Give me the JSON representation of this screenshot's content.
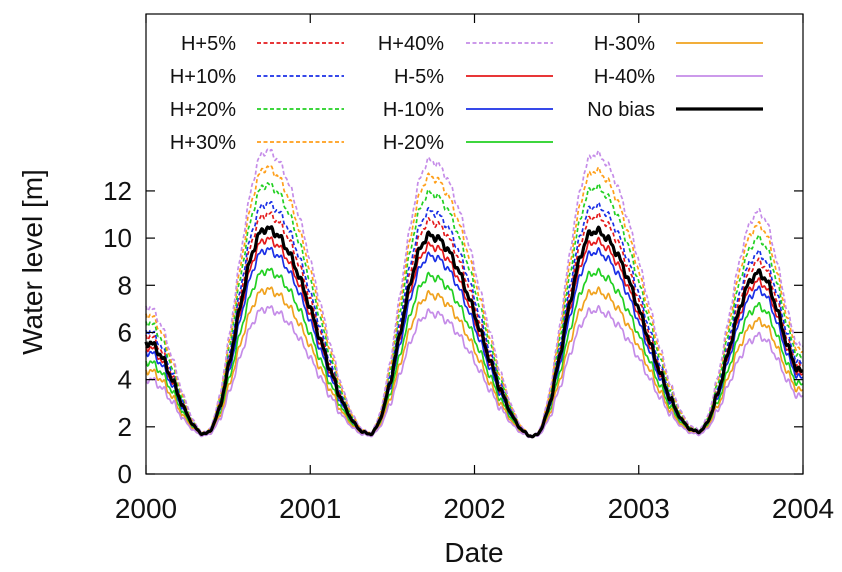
{
  "chart_data": {
    "type": "line",
    "xlabel": "Date",
    "ylabel": "Water level [m]",
    "xlim": [
      2000,
      2004
    ],
    "ylim": [
      0,
      19.5
    ],
    "xticks": [
      2000,
      2001,
      2002,
      2003,
      2004
    ],
    "yticks": [
      0,
      2,
      4,
      6,
      8,
      10,
      12
    ],
    "grid": false,
    "legend_position": "top, 3 columns",
    "years": [
      2000,
      2001,
      2002,
      2003
    ],
    "base_shape": {
      "start_level": 5.6,
      "mins": [
        1.7,
        1.7,
        1.6,
        1.8
      ],
      "peaks": [
        10.4,
        10.1,
        10.3,
        8.5
      ],
      "end_level": 4.3
    },
    "series": [
      {
        "name": "H+5%",
        "color": "#e41a1c",
        "dash": true,
        "factor": 1.07
      },
      {
        "name": "H+10%",
        "color": "#1a2fe6",
        "dash": true,
        "factor": 1.12
      },
      {
        "name": "H+20%",
        "color": "#22d022",
        "dash": true,
        "factor": 1.21
      },
      {
        "name": "H+30%",
        "color": "#ff9f1a",
        "dash": true,
        "factor": 1.29
      },
      {
        "name": "H+40%",
        "color": "#c58ce8",
        "dash": true,
        "factor": 1.37
      },
      {
        "name": "H-5%",
        "color": "#e41a1c",
        "dash": false,
        "factor": 0.95
      },
      {
        "name": "H-10%",
        "color": "#1a2fe6",
        "dash": false,
        "factor": 0.9
      },
      {
        "name": "H-20%",
        "color": "#22d022",
        "dash": false,
        "factor": 0.8
      },
      {
        "name": "H-30%",
        "color": "#f0a21e",
        "dash": false,
        "factor": 0.71
      },
      {
        "name": "H-40%",
        "color": "#c58ce8",
        "dash": false,
        "factor": 0.62
      },
      {
        "name": "No bias",
        "color": "#000000",
        "dash": false,
        "factor": 1.0,
        "bold": true
      }
    ]
  }
}
